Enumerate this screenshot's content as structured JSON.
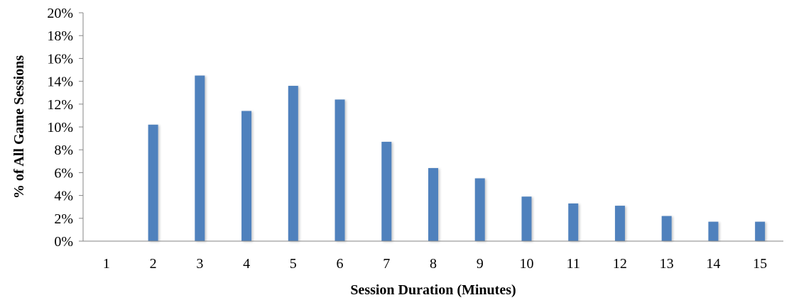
{
  "chart_data": {
    "type": "bar",
    "title": "",
    "xlabel": "Session Duration (Minutes)",
    "ylabel": "% of All Game Sessions",
    "categories": [
      "1",
      "2",
      "3",
      "4",
      "5",
      "6",
      "7",
      "8",
      "9",
      "10",
      "11",
      "12",
      "13",
      "14",
      "15"
    ],
    "values": [
      0,
      10.2,
      14.5,
      11.4,
      13.6,
      12.4,
      8.7,
      6.4,
      5.5,
      3.9,
      3.3,
      3.1,
      2.2,
      1.7,
      1.7
    ],
    "ylim": [
      0,
      20
    ],
    "yticks": [
      0,
      2,
      4,
      6,
      8,
      10,
      12,
      14,
      16,
      18,
      20
    ],
    "ytick_suffix": "%",
    "grid": false,
    "legend": "none",
    "bar_color": "#4f81bd"
  }
}
